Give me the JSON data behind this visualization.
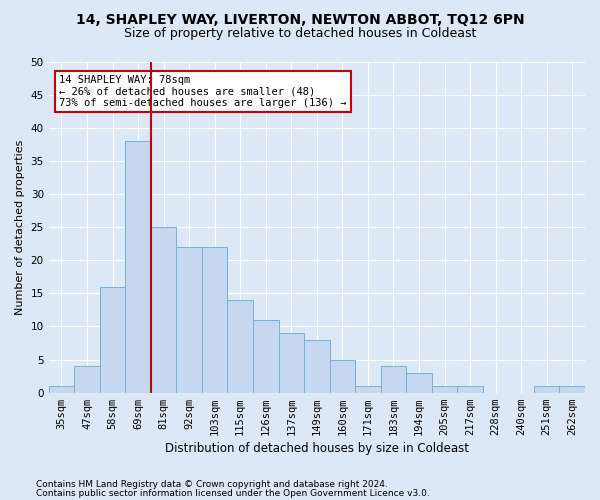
{
  "title1": "14, SHAPLEY WAY, LIVERTON, NEWTON ABBOT, TQ12 6PN",
  "title2": "Size of property relative to detached houses in Coldeast",
  "xlabel": "Distribution of detached houses by size in Coldeast",
  "ylabel": "Number of detached properties",
  "bar_labels": [
    "35sqm",
    "47sqm",
    "58sqm",
    "69sqm",
    "81sqm",
    "92sqm",
    "103sqm",
    "115sqm",
    "126sqm",
    "137sqm",
    "149sqm",
    "160sqm",
    "171sqm",
    "183sqm",
    "194sqm",
    "205sqm",
    "217sqm",
    "228sqm",
    "240sqm",
    "251sqm",
    "262sqm"
  ],
  "bar_values": [
    1,
    4,
    16,
    38,
    25,
    22,
    22,
    14,
    11,
    9,
    8,
    5,
    1,
    4,
    3,
    1,
    1,
    0,
    0,
    1,
    1
  ],
  "bar_color": "#c5d8ef",
  "bar_edge_color": "#7aafd4",
  "red_line_bin_index": 4,
  "annotation_text": "14 SHAPLEY WAY: 78sqm\n← 26% of detached houses are smaller (48)\n73% of semi-detached houses are larger (136) →",
  "annotation_box_color": "#ffffff",
  "annotation_box_edge": "#cc0000",
  "red_line_color": "#cc0000",
  "ylim": [
    0,
    50
  ],
  "yticks": [
    0,
    5,
    10,
    15,
    20,
    25,
    30,
    35,
    40,
    45,
    50
  ],
  "footer1": "Contains HM Land Registry data © Crown copyright and database right 2024.",
  "footer2": "Contains public sector information licensed under the Open Government Licence v3.0.",
  "bg_color": "#dce8f5",
  "plot_bg_color": "#dce8f5",
  "title1_fontsize": 10,
  "title2_fontsize": 9,
  "xlabel_fontsize": 8.5,
  "ylabel_fontsize": 8,
  "tick_fontsize": 7.5,
  "annot_fontsize": 7.5,
  "footer_fontsize": 6.5
}
